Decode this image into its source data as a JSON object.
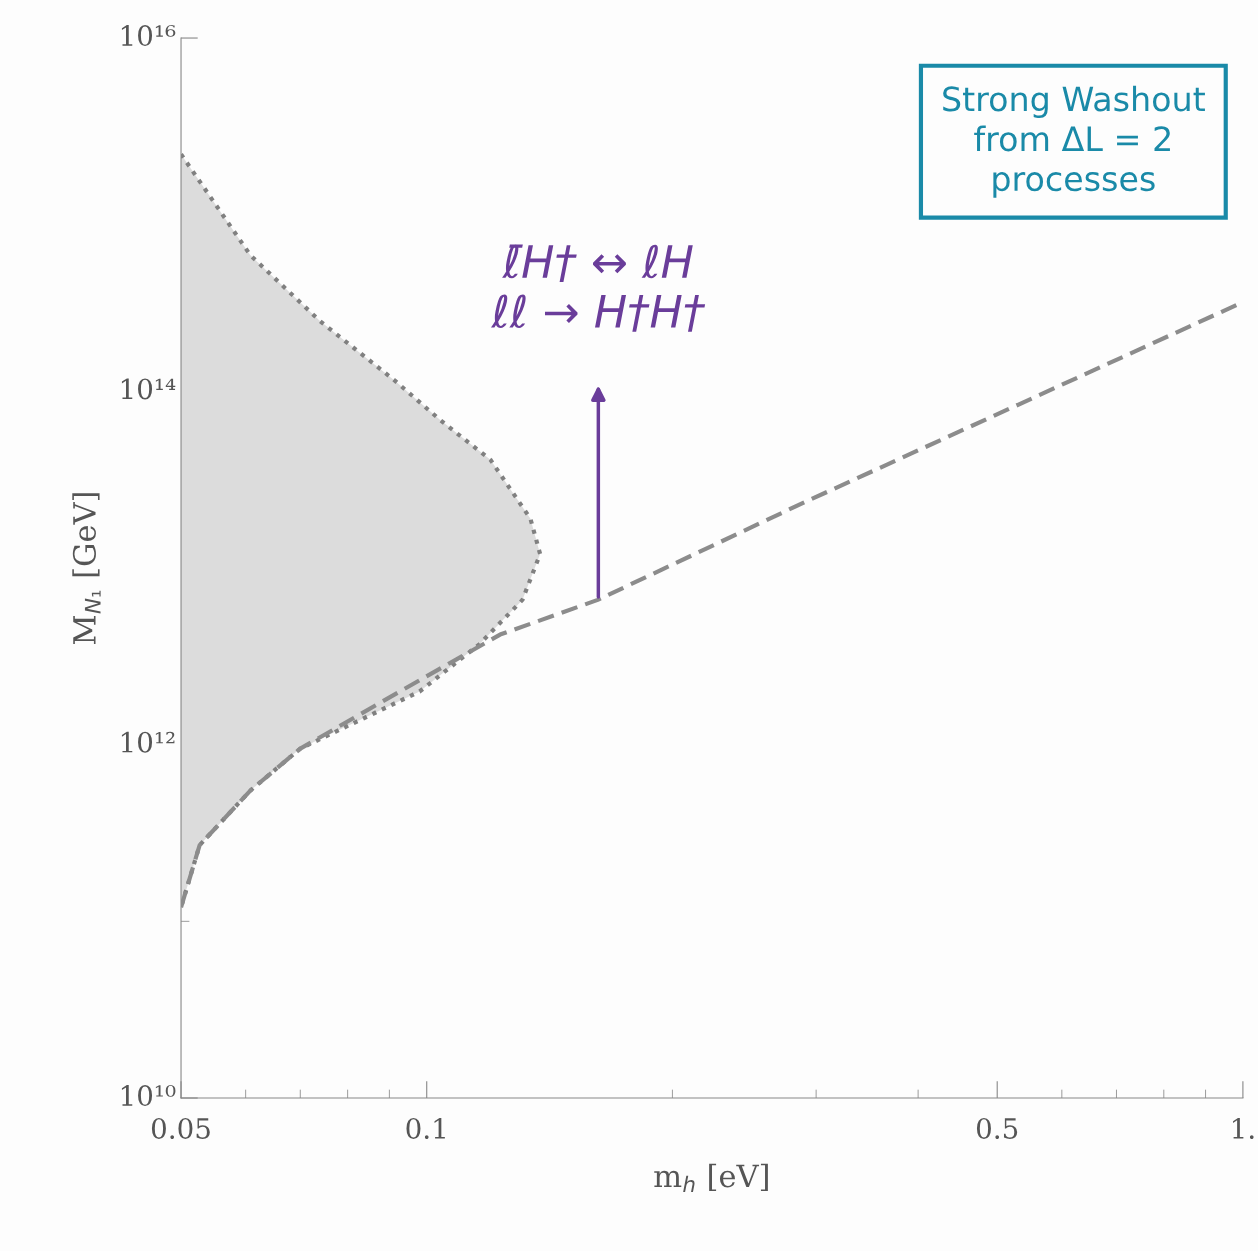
{
  "chart_data": {
    "type": "line",
    "xlabel": "m$_{h}$ [eV]",
    "ylabel": "M$_{N₁}$ [GeV]",
    "log": "xy",
    "xlim": [
      0.05,
      1
    ],
    "ylim": [
      10000000000.0,
      1e+16
    ],
    "xticks": [
      0.05,
      {
        "value": 0.06,
        "label": null
      },
      {
        "value": 0.07,
        "label": null
      },
      {
        "value": 0.08,
        "label": null
      },
      {
        "value": 0.09,
        "label": null
      },
      0.1,
      {
        "value": 0.2,
        "label": null
      },
      {
        "value": 0.3,
        "label": null
      },
      {
        "value": 0.4,
        "label": null
      },
      0.5,
      {
        "value": 0.6,
        "label": null
      },
      {
        "value": 0.7,
        "label": null
      },
      {
        "value": 0.8,
        "label": null
      },
      {
        "value": 0.9,
        "label": null
      },
      {
        "value": 1,
        "label": "1."
      }
    ],
    "yticks": [
      {
        "value": 10000000000.0,
        "label": "10¹⁰"
      },
      {
        "value": 100000000000.0,
        "label": null
      },
      {
        "value": 1000000000000.0,
        "label": "10¹²"
      },
      {
        "value": 10000000000000.0,
        "label": null
      },
      {
        "value": 100000000000000.0,
        "label": "10¹⁴"
      },
      {
        "value": 1000000000000000.0,
        "label": null
      },
      {
        "value": 1e+16,
        "label": "10¹⁶"
      }
    ],
    "grid": false,
    "legend": false,
    "series": [
      {
        "type": "area",
        "color": "#dcdcdc",
        "line_style": "dotted",
        "x": [
          0.05,
          0.0608,
          0.074,
          0.0914,
          0.1038,
          0.1197,
          0.134,
          0.1377,
          0.131,
          0.116,
          0.098,
          0.07,
          0.0608,
          0.0527,
          0.05
        ],
        "values": [
          2200000000000000.0,
          590000000000000.0,
          250000000000000.0,
          115000000000000.0,
          69000000000000.0,
          41000000000000.0,
          19000000000000.0,
          12000000000000.0,
          6600000000000.0,
          3700000000000.0,
          2000000000000.0,
          950000000000.0,
          550000000000.0,
          270000000000.0,
          120000000000.0
        ]
      },
      {
        "color": "#8c8c8c",
        "line_style": "dashed",
        "x": [
          0.05,
          0.0527,
          0.0608,
          0.07,
          0.0927,
          0.123,
          0.162,
          0.287,
          1
        ],
        "values": [
          120000000000.0,
          270000000000.0,
          550000000000.0,
          950000000000.0,
          2000000000000.0,
          4200000000000.0,
          6600000000000.0,
          23000000000000.0,
          320000000000000.0
        ]
      }
    ],
    "annotations": [
      "ℓ̄H† ↔ ℓH\nℓℓ → H†H†",
      "Strong Washout\nfrom ΔL = 2\nprocesses"
    ]
  }
}
